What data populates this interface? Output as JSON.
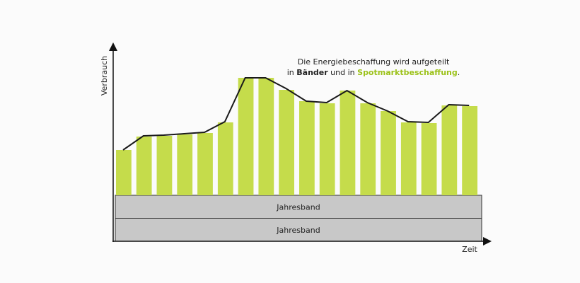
{
  "chart_data": {
    "type": "bar",
    "y_label": "Verbrauch",
    "x_label": "Zeit",
    "annotation": {
      "line1": "Die Energiebeschaffung wird aufgeteilt",
      "line2": [
        "in ",
        "Bänder",
        " und in ",
        "Spotmarktbeschaffung",
        "."
      ]
    },
    "bands": [
      "Jahresband",
      "Jahresband"
    ],
    "band_color": "#c8c8c8",
    "ylim": [
      0,
      200
    ],
    "series": [
      {
        "type": "bar",
        "color": "#c5dc4b",
        "values": [
          64,
          83,
          84,
          86,
          88,
          103,
          166,
          166,
          149,
          133,
          130,
          148,
          130,
          119,
          103,
          102,
          127,
          126
        ]
      },
      {
        "type": "line",
        "color": "#1a1a1a",
        "values": [
          64,
          84,
          85,
          87,
          89,
          104,
          166,
          166,
          151,
          133,
          131,
          148,
          131,
          119,
          104,
          103,
          128,
          127
        ]
      }
    ]
  }
}
